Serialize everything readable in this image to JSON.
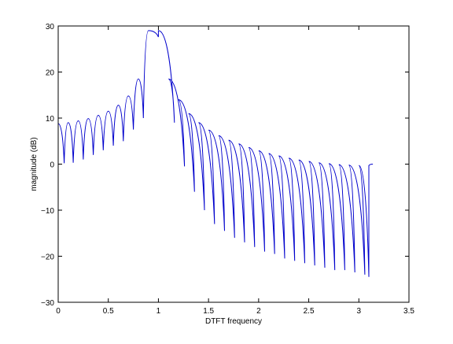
{
  "chart_data": {
    "type": "line",
    "title": "",
    "xlabel": "DTFT frequency",
    "ylabel": "magnitude (dB)",
    "xlim": [
      0,
      3.5
    ],
    "ylim": [
      -30,
      30
    ],
    "xticks": [
      0,
      0.5,
      1,
      1.5,
      2,
      2.5,
      3,
      3.5
    ],
    "xtick_labels": [
      "0",
      "0.5",
      "1",
      "1.5",
      "2",
      "2.5",
      "3",
      "3.5"
    ],
    "yticks": [
      -30,
      -20,
      -10,
      0,
      10,
      20,
      30
    ],
    "ytick_labels": [
      "−30",
      "−20",
      "−10",
      "0",
      "10",
      "20",
      "30"
    ],
    "grid": false,
    "legend": "none",
    "series": [
      {
        "color": "#0000cc",
        "peaks": [
          [
            0.0,
            8.8
          ],
          [
            0.1,
            9.0
          ],
          [
            0.2,
            9.4
          ],
          [
            0.3,
            9.9
          ],
          [
            0.4,
            10.6
          ],
          [
            0.5,
            11.5
          ],
          [
            0.6,
            12.8
          ],
          [
            0.7,
            14.8
          ],
          [
            0.8,
            18.5
          ],
          [
            0.9,
            29.0
          ],
          [
            1.0,
            29.0
          ],
          [
            1.1,
            18.5
          ],
          [
            1.2,
            14.0
          ],
          [
            1.3,
            11.0
          ],
          [
            1.4,
            9.0
          ],
          [
            1.5,
            7.4
          ],
          [
            1.6,
            6.2
          ],
          [
            1.7,
            5.2
          ],
          [
            1.8,
            4.4
          ],
          [
            1.9,
            3.6
          ],
          [
            2.0,
            2.9
          ],
          [
            2.1,
            2.3
          ],
          [
            2.2,
            1.8
          ],
          [
            2.3,
            1.3
          ],
          [
            2.4,
            0.9
          ],
          [
            2.5,
            0.6
          ],
          [
            2.6,
            0.3
          ],
          [
            2.7,
            0.1
          ],
          [
            2.8,
            -0.1
          ],
          [
            2.9,
            -0.2
          ],
          [
            3.0,
            -0.3
          ],
          [
            3.1,
            -0.3
          ]
        ],
        "troughs": [
          [
            0.06,
            0.2
          ],
          [
            0.15,
            0.3
          ],
          [
            0.25,
            1.0
          ],
          [
            0.35,
            2.0
          ],
          [
            0.45,
            3.0
          ],
          [
            0.55,
            4.0
          ],
          [
            0.65,
            5.0
          ],
          [
            0.75,
            7.5
          ],
          [
            0.85,
            10.0
          ],
          [
            1.0,
            27.6
          ],
          [
            1.16,
            9.0
          ],
          [
            1.26,
            -0.5
          ],
          [
            1.36,
            -6.0
          ],
          [
            1.46,
            -10.0
          ],
          [
            1.56,
            -13.0
          ],
          [
            1.66,
            -14.5
          ],
          [
            1.76,
            -16.0
          ],
          [
            1.86,
            -17.0
          ],
          [
            1.96,
            -18.0
          ],
          [
            2.06,
            -19.0
          ],
          [
            2.16,
            -19.5
          ],
          [
            2.26,
            -20.5
          ],
          [
            2.36,
            -21.0
          ],
          [
            2.46,
            -21.5
          ],
          [
            2.56,
            -22.0
          ],
          [
            2.66,
            -22.5
          ],
          [
            2.76,
            -23.0
          ],
          [
            2.86,
            -23.0
          ],
          [
            2.96,
            -23.5
          ],
          [
            3.06,
            -24.0
          ],
          [
            3.1,
            -24.5
          ]
        ],
        "end": [
          3.14,
          0.0
        ]
      }
    ]
  }
}
